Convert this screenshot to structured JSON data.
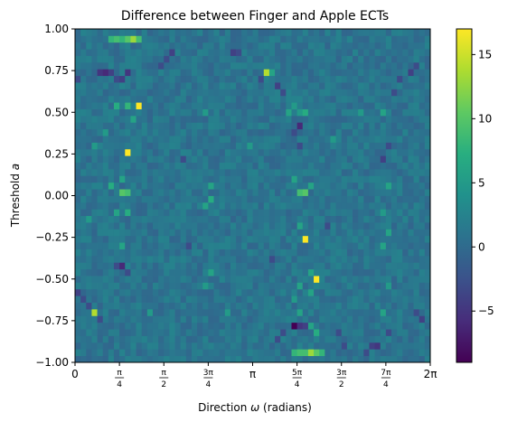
{
  "chart_data": {
    "type": "heatmap",
    "title": "Difference between Finger and Apple ECTs",
    "xlabel_text": "Direction ",
    "xlabel_symbol": "ω",
    "xlabel_unit": " (radians)",
    "ylabel_text": "Threshold ",
    "ylabel_symbol": "a",
    "xlim": [
      0,
      6.2832
    ],
    "ylim": [
      -1.0,
      1.0
    ],
    "x_ticks": [
      {
        "value": 0,
        "label": "0"
      },
      {
        "value": 0.7854,
        "num": "π",
        "den": "4"
      },
      {
        "value": 1.5708,
        "num": "π",
        "den": "2"
      },
      {
        "value": 2.3562,
        "num": "3π",
        "den": "4"
      },
      {
        "value": 3.1416,
        "label": "π"
      },
      {
        "value": 3.927,
        "num": "5π",
        "den": "4"
      },
      {
        "value": 4.7124,
        "num": "3π",
        "den": "2"
      },
      {
        "value": 5.4978,
        "num": "7π",
        "den": "4"
      },
      {
        "value": 6.2832,
        "label": "2π"
      }
    ],
    "y_ticks": [
      {
        "value": 1.0,
        "label": "1.00"
      },
      {
        "value": 0.75,
        "label": "0.75"
      },
      {
        "value": 0.5,
        "label": "0.50"
      },
      {
        "value": 0.25,
        "label": "0.25"
      },
      {
        "value": 0.0,
        "label": "0.00"
      },
      {
        "value": -0.25,
        "label": "−0.25"
      },
      {
        "value": -0.5,
        "label": "−0.50"
      },
      {
        "value": -0.75,
        "label": "−0.75"
      },
      {
        "value": -1.0,
        "label": "−1.00"
      }
    ],
    "grid": "off",
    "colormap": "viridis",
    "colorbar": {
      "vmin": -9,
      "vmax": 17,
      "ticks": [
        {
          "value": 15,
          "label": "15"
        },
        {
          "value": 10,
          "label": "10"
        },
        {
          "value": 5,
          "label": "5"
        },
        {
          "value": 0,
          "label": "0"
        },
        {
          "value": -5,
          "label": "−5"
        }
      ]
    },
    "grid_size": {
      "columns": 64,
      "rows": 50
    },
    "background_value": 1,
    "cells": [
      {
        "x": 0.66,
        "y": 0.93,
        "v": 8
      },
      {
        "x": 0.76,
        "y": 0.93,
        "v": 9
      },
      {
        "x": 0.86,
        "y": 0.93,
        "v": 8
      },
      {
        "x": 1.06,
        "y": 0.93,
        "v": 13
      },
      {
        "x": 1.16,
        "y": 0.93,
        "v": 9
      },
      {
        "x": 0.96,
        "y": 0.93,
        "v": 10
      },
      {
        "x": 0.46,
        "y": 0.73,
        "v": -5
      },
      {
        "x": 0.56,
        "y": 0.73,
        "v": -6
      },
      {
        "x": 0.66,
        "y": 0.73,
        "v": -4
      },
      {
        "x": 0.76,
        "y": 0.69,
        "v": -3
      },
      {
        "x": 0.86,
        "y": 0.69,
        "v": -4
      },
      {
        "x": 0.96,
        "y": 0.73,
        "v": -5
      },
      {
        "x": 0.71,
        "y": 0.53,
        "v": 7
      },
      {
        "x": 0.91,
        "y": 0.53,
        "v": 8
      },
      {
        "x": 1.16,
        "y": 0.53,
        "v": 17
      },
      {
        "x": 1.06,
        "y": 0.45,
        "v": 6
      },
      {
        "x": 0.96,
        "y": 0.25,
        "v": 17
      },
      {
        "x": 0.86,
        "y": 0.09,
        "v": 6
      },
      {
        "x": 0.66,
        "y": 0.05,
        "v": 7
      },
      {
        "x": 0.86,
        "y": 0.01,
        "v": 10
      },
      {
        "x": 0.96,
        "y": 0.01,
        "v": 9
      },
      {
        "x": 0.76,
        "y": -0.11,
        "v": 6
      },
      {
        "x": 0.96,
        "y": -0.11,
        "v": 7
      },
      {
        "x": 0.86,
        "y": -0.31,
        "v": 6
      },
      {
        "x": 0.76,
        "y": -0.43,
        "v": -3
      },
      {
        "x": 0.86,
        "y": -0.43,
        "v": -6
      },
      {
        "x": 0.96,
        "y": -0.47,
        "v": -3
      },
      {
        "x": 0.36,
        "y": -0.71,
        "v": 14
      },
      {
        "x": 0.26,
        "y": -0.67,
        "v": -3
      },
      {
        "x": 0.46,
        "y": -0.75,
        "v": -3
      },
      {
        "x": 0.06,
        "y": -0.59,
        "v": -4
      },
      {
        "x": 0.16,
        "y": -0.63,
        "v": -3
      },
      {
        "x": 0.06,
        "y": 0.69,
        "v": -3
      },
      {
        "x": 2.36,
        "y": 0.05,
        "v": 6
      },
      {
        "x": 2.36,
        "y": -0.03,
        "v": 7
      },
      {
        "x": 2.26,
        "y": -0.07,
        "v": 6
      },
      {
        "x": 2.36,
        "y": -0.47,
        "v": 6
      },
      {
        "x": 2.26,
        "y": -0.55,
        "v": 5
      },
      {
        "x": 2.26,
        "y": 0.49,
        "v": 5
      },
      {
        "x": 2.76,
        "y": 0.85,
        "v": -4
      },
      {
        "x": 2.86,
        "y": 0.85,
        "v": -3
      },
      {
        "x": 3.36,
        "y": 0.73,
        "v": 14
      },
      {
        "x": 3.46,
        "y": 0.73,
        "v": 6
      },
      {
        "x": 3.26,
        "y": 0.69,
        "v": -3
      },
      {
        "x": 3.56,
        "y": 0.65,
        "v": -4
      },
      {
        "x": 3.66,
        "y": 0.61,
        "v": -3
      },
      {
        "x": 3.76,
        "y": 0.49,
        "v": 6
      },
      {
        "x": 3.86,
        "y": 0.53,
        "v": 5
      },
      {
        "x": 3.96,
        "y": 0.49,
        "v": 5
      },
      {
        "x": 3.96,
        "y": 0.41,
        "v": -6
      },
      {
        "x": 3.86,
        "y": 0.37,
        "v": -3
      },
      {
        "x": 3.96,
        "y": 0.29,
        "v": -3
      },
      {
        "x": 4.06,
        "y": 0.49,
        "v": 7
      },
      {
        "x": 3.96,
        "y": 0.01,
        "v": 9
      },
      {
        "x": 4.06,
        "y": 0.01,
        "v": 10
      },
      {
        "x": 3.86,
        "y": 0.09,
        "v": 6
      },
      {
        "x": 4.16,
        "y": 0.05,
        "v": 6
      },
      {
        "x": 4.06,
        "y": -0.27,
        "v": 17
      },
      {
        "x": 3.96,
        "y": -0.19,
        "v": 6
      },
      {
        "x": 4.26,
        "y": -0.51,
        "v": 17
      },
      {
        "x": 4.16,
        "y": -0.47,
        "v": 6
      },
      {
        "x": 3.96,
        "y": -0.55,
        "v": 6
      },
      {
        "x": 4.16,
        "y": -0.59,
        "v": 6
      },
      {
        "x": 3.86,
        "y": -0.63,
        "v": 5
      },
      {
        "x": 3.96,
        "y": -0.71,
        "v": 6
      },
      {
        "x": 3.96,
        "y": -0.79,
        "v": -5
      },
      {
        "x": 3.86,
        "y": -0.79,
        "v": -9
      },
      {
        "x": 4.06,
        "y": -0.79,
        "v": -4
      },
      {
        "x": 4.16,
        "y": -0.79,
        "v": 6
      },
      {
        "x": 4.26,
        "y": -0.83,
        "v": 7
      },
      {
        "x": 3.66,
        "y": -0.83,
        "v": -3
      },
      {
        "x": 3.56,
        "y": -0.87,
        "v": -3
      },
      {
        "x": 3.86,
        "y": -0.93,
        "v": 8
      },
      {
        "x": 3.96,
        "y": -0.93,
        "v": 9
      },
      {
        "x": 4.06,
        "y": -0.93,
        "v": 9
      },
      {
        "x": 4.16,
        "y": -0.93,
        "v": 13
      },
      {
        "x": 4.26,
        "y": -0.93,
        "v": 10
      },
      {
        "x": 4.36,
        "y": -0.93,
        "v": 8
      },
      {
        "x": 4.66,
        "y": -0.83,
        "v": -3
      },
      {
        "x": 4.76,
        "y": -0.91,
        "v": -3
      },
      {
        "x": 5.16,
        "y": -0.93,
        "v": -3
      },
      {
        "x": 5.26,
        "y": -0.91,
        "v": -4
      },
      {
        "x": 5.36,
        "y": -0.89,
        "v": -5
      },
      {
        "x": 5.56,
        "y": -0.83,
        "v": -3
      },
      {
        "x": 5.46,
        "y": -0.71,
        "v": 6
      },
      {
        "x": 5.56,
        "y": -0.55,
        "v": 5
      },
      {
        "x": 5.46,
        "y": -0.31,
        "v": 6
      },
      {
        "x": 5.56,
        "y": -0.23,
        "v": 6
      },
      {
        "x": 5.46,
        "y": -0.11,
        "v": 5
      },
      {
        "x": 5.56,
        "y": 0.05,
        "v": 6
      },
      {
        "x": 5.46,
        "y": 0.21,
        "v": -4
      },
      {
        "x": 5.56,
        "y": 0.29,
        "v": -3
      },
      {
        "x": 5.46,
        "y": 0.49,
        "v": 6
      },
      {
        "x": 5.66,
        "y": 0.61,
        "v": -3
      },
      {
        "x": 5.76,
        "y": 0.69,
        "v": -3
      },
      {
        "x": 5.96,
        "y": 0.73,
        "v": -4
      },
      {
        "x": 6.06,
        "y": 0.77,
        "v": -3
      },
      {
        "x": 6.16,
        "y": -0.75,
        "v": -4
      },
      {
        "x": 6.06,
        "y": -0.71,
        "v": -3
      },
      {
        "x": 1.66,
        "y": 0.81,
        "v": -3
      },
      {
        "x": 1.76,
        "y": 0.85,
        "v": -4
      },
      {
        "x": 1.56,
        "y": 0.77,
        "v": -3
      },
      {
        "x": 0.36,
        "y": 0.29,
        "v": 5
      },
      {
        "x": 0.26,
        "y": -0.15,
        "v": 5
      },
      {
        "x": 0.56,
        "y": 0.37,
        "v": 5
      },
      {
        "x": 2.66,
        "y": -0.71,
        "v": 5
      },
      {
        "x": 3.06,
        "y": 0.29,
        "v": 5
      },
      {
        "x": 3.46,
        "y": -0.39,
        "v": -3
      },
      {
        "x": 4.56,
        "y": 0.33,
        "v": 5
      },
      {
        "x": 4.46,
        "y": -0.19,
        "v": -3
      },
      {
        "x": 5.06,
        "y": 0.49,
        "v": 5
      },
      {
        "x": 1.36,
        "y": -0.71,
        "v": 5
      },
      {
        "x": 1.96,
        "y": 0.21,
        "v": -3
      },
      {
        "x": 2.06,
        "y": -0.31,
        "v": -3
      }
    ]
  }
}
